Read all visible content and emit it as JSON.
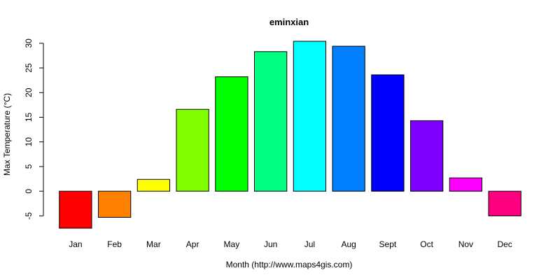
{
  "chart_data": {
    "type": "bar",
    "title": "eminxian",
    "xlabel": "Month (http://www.maps4gis.com)",
    "ylabel": "Max Temperature (°C)",
    "categories": [
      "Jan",
      "Feb",
      "Mar",
      "Apr",
      "May",
      "Jun",
      "Jul",
      "Aug",
      "Sept",
      "Oct",
      "Nov",
      "Dec"
    ],
    "values": [
      -7.5,
      -5.3,
      2.4,
      16.6,
      23.2,
      28.3,
      30.4,
      29.4,
      23.6,
      14.3,
      2.7,
      -5.0
    ],
    "colors": [
      "#FF0000",
      "#FF8000",
      "#FFFF00",
      "#80FF00",
      "#00FF00",
      "#00FF80",
      "#00FFFF",
      "#0080FF",
      "#0000FF",
      "#8000FF",
      "#FF00FF",
      "#FF0080"
    ],
    "yticks": [
      -5,
      0,
      5,
      10,
      15,
      20,
      25,
      30
    ],
    "ylim": [
      -7.5,
      30.4
    ],
    "grid": false,
    "legend": "none"
  }
}
